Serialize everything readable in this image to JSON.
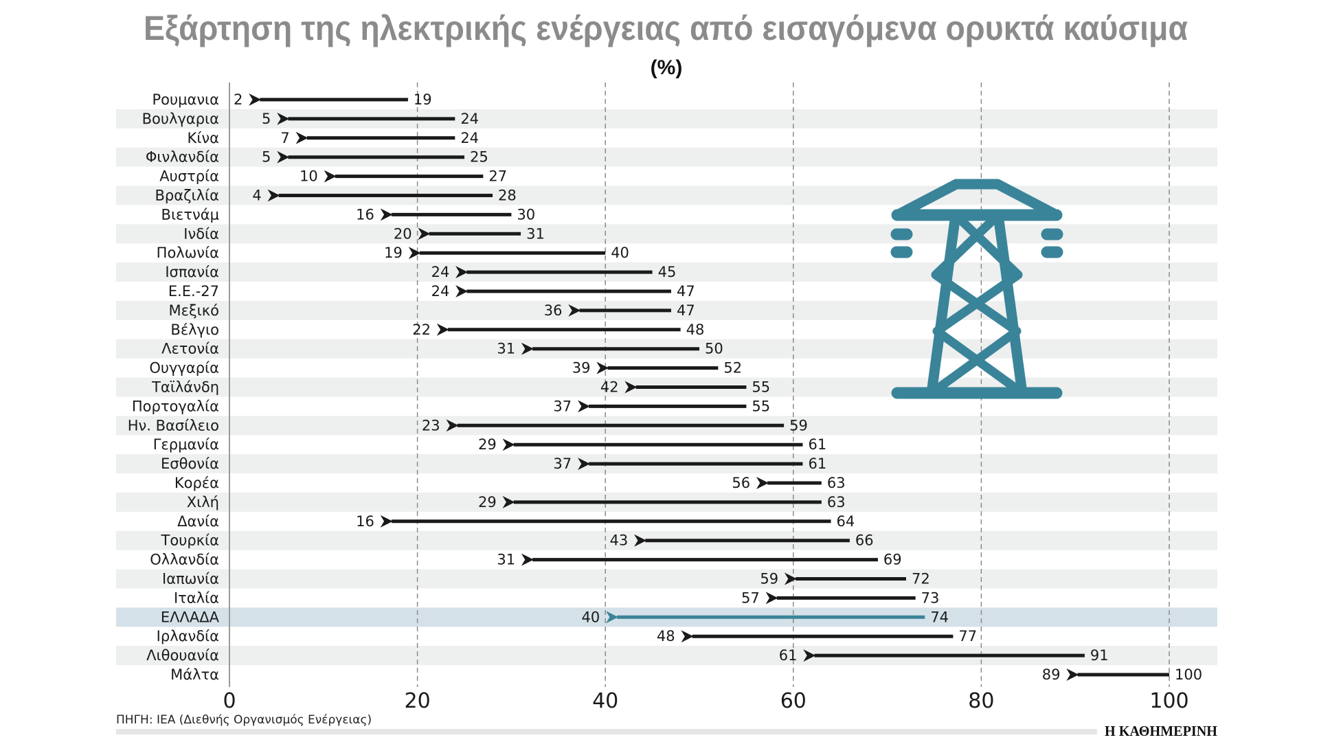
{
  "chart_data": {
    "type": "arrow-range",
    "title": "Εξάρτηση της ηλεκτρικής ενέργειας από εισαγόμενα ορυκτά καύσιμα",
    "subtitle": "(%)",
    "xlim": [
      0,
      100
    ],
    "xticks": [
      "0",
      "20",
      "40",
      "60",
      "80",
      "100"
    ],
    "grid": "vertical dashed",
    "highlight_category": "ΕΛΛΑΔΑ",
    "colors": {
      "arrow": "#1a1a1a",
      "highlight_arrow": "#3a8499",
      "highlight_row": "#d5e1e8",
      "stripe": "#eeefef",
      "icon": "#3a8499",
      "title": "#8b8b8b"
    },
    "rows": [
      {
        "category": "Ρουμανια",
        "from": 19,
        "to": 2
      },
      {
        "category": "Βουλγαρια",
        "from": 24,
        "to": 5
      },
      {
        "category": "Κίνα",
        "from": 24,
        "to": 7
      },
      {
        "category": "Φινλανδία",
        "from": 25,
        "to": 5
      },
      {
        "category": "Αυστρία",
        "from": 27,
        "to": 10
      },
      {
        "category": "Βραζιλία",
        "from": 28,
        "to": 4
      },
      {
        "category": "Βιετνάμ",
        "from": 30,
        "to": 16
      },
      {
        "category": "Ινδία",
        "from": 31,
        "to": 20
      },
      {
        "category": "Πολωνία",
        "from": 40,
        "to": 19
      },
      {
        "category": "Ισπανία",
        "from": 45,
        "to": 24
      },
      {
        "category": "Ε.Ε.-27",
        "from": 47,
        "to": 24
      },
      {
        "category": "Μεξικό",
        "from": 47,
        "to": 36
      },
      {
        "category": "Βέλγιο",
        "from": 48,
        "to": 22
      },
      {
        "category": "Λετονία",
        "from": 50,
        "to": 31
      },
      {
        "category": "Ουγγαρία",
        "from": 52,
        "to": 39
      },
      {
        "category": "Ταϊλάνδη",
        "from": 55,
        "to": 42
      },
      {
        "category": "Πορτογαλία",
        "from": 55,
        "to": 37
      },
      {
        "category": "Ην. Βασίλειο",
        "from": 59,
        "to": 23
      },
      {
        "category": "Γερμανία",
        "from": 61,
        "to": 29
      },
      {
        "category": "Εσθονία",
        "from": 61,
        "to": 37
      },
      {
        "category": "Κορέα",
        "from": 63,
        "to": 56
      },
      {
        "category": "Χιλή",
        "from": 63,
        "to": 29
      },
      {
        "category": "Δανία",
        "from": 64,
        "to": 16
      },
      {
        "category": "Τουρκία",
        "from": 66,
        "to": 43
      },
      {
        "category": "Ολλανδία",
        "from": 69,
        "to": 31
      },
      {
        "category": "Ιαπωνία",
        "from": 72,
        "to": 59
      },
      {
        "category": "Ιταλία",
        "from": 73,
        "to": 57
      },
      {
        "category": "ΕΛΛΑΔΑ",
        "from": 74,
        "to": 40
      },
      {
        "category": "Ιρλανδία",
        "from": 77,
        "to": 48
      },
      {
        "category": "Λιθουανία",
        "from": 91,
        "to": 61
      },
      {
        "category": "Μάλτα",
        "from": 100,
        "to": 89
      }
    ],
    "icon": "power-transmission-tower-icon"
  },
  "footer": {
    "source": "ΠΗΓΗ: IEA (Διεθνής Οργανισμός Ενέργειας)",
    "brand": "Η ΚΑΘΗΜΕΡΙΝΗ"
  }
}
